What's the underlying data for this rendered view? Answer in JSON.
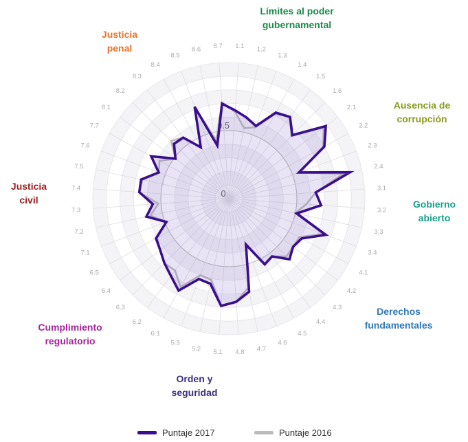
{
  "chart_data": {
    "type": "radar",
    "radial_ticks": [
      "0",
      "0.5"
    ],
    "rmax": 1,
    "colors": {
      "series_2017": "#3a0f8c",
      "series_2016": "#bbbbbb",
      "ring_light": "#f4f3f6",
      "ring_white": "#ffffff"
    },
    "categories": [
      "1.1",
      "1.2",
      "1.3",
      "1.4",
      "1.5",
      "1.6",
      "2.1",
      "2.2",
      "2.3",
      "2.4",
      "3.1",
      "3.2",
      "3.3",
      "3.4",
      "4.1",
      "4.2",
      "4.3",
      "4.4",
      "4.5",
      "4.6",
      "4.7",
      "4.8",
      "5.1",
      "5.2",
      "5.3",
      "6.1",
      "6.2",
      "6.3",
      "6.4",
      "6.5",
      "7.1",
      "7.2",
      "7.3",
      "7.4",
      "7.5",
      "7.6",
      "7.7",
      "8.1",
      "8.2",
      "8.3",
      "8.4",
      "8.5",
      "8.6",
      "8.7"
    ],
    "groups": [
      {
        "name": "Límites al poder gubernamental",
        "lines": [
          "Límites al poder",
          "gubernamental"
        ],
        "color": "#1a8a4a"
      },
      {
        "name": "Ausencia de corrupción",
        "lines": [
          "Ausencia de",
          "corrupción"
        ],
        "color": "#8a9b1e"
      },
      {
        "name": "Gobierno abierto",
        "lines": [
          "Gobierno",
          "abierto"
        ],
        "color": "#1a9e8a"
      },
      {
        "name": "Derechos fundamentales",
        "lines": [
          "Derechos",
          "fundamentales"
        ],
        "color": "#2e79b8"
      },
      {
        "name": "Orden y seguridad",
        "lines": [
          "Orden y",
          "seguridad"
        ],
        "color": "#3b2e7e"
      },
      {
        "name": "Cumplimiento regulatorio",
        "lines": [
          "Cumplimiento",
          "regulatorio"
        ],
        "color": "#a5259a"
      },
      {
        "name": "Justicia civil",
        "lines": [
          "Justicia",
          "civil"
        ],
        "color": "#9c1f1f"
      },
      {
        "name": "Justicia penal",
        "lines": [
          "Justicia",
          "penal"
        ],
        "color": "#e8752a"
      }
    ],
    "series": [
      {
        "name": "Puntaje 2017",
        "values": [
          0.65,
          0.61,
          0.57,
          0.72,
          0.75,
          0.66,
          0.89,
          0.8,
          0.55,
          0.91,
          0.64,
          0.68,
          0.51,
          0.76,
          0.61,
          0.59,
          0.63,
          0.53,
          0.55,
          0.36,
          0.7,
          0.76,
          0.79,
          0.64,
          0.63,
          0.77,
          0.71,
          0.67,
          0.63,
          0.61,
          0.49,
          0.62,
          0.56,
          0.66,
          0.66,
          0.55,
          0.65,
          0.49,
          0.57,
          0.56,
          0.43,
          0.72,
          0.4,
          0.7
        ]
      },
      {
        "name": "Puntaje 2016",
        "values": [
          0.64,
          0.53,
          0.56,
          0.71,
          0.75,
          0.65,
          0.87,
          0.79,
          0.55,
          0.86,
          0.64,
          0.57,
          0.5,
          0.74,
          0.59,
          0.59,
          0.6,
          0.53,
          0.55,
          0.37,
          0.67,
          0.76,
          0.79,
          0.61,
          0.6,
          0.74,
          0.66,
          0.67,
          0.63,
          0.6,
          0.49,
          0.59,
          0.52,
          0.66,
          0.65,
          0.55,
          0.58,
          0.49,
          0.6,
          0.56,
          0.43,
          0.72,
          0.44,
          0.71
        ]
      }
    ]
  }
}
